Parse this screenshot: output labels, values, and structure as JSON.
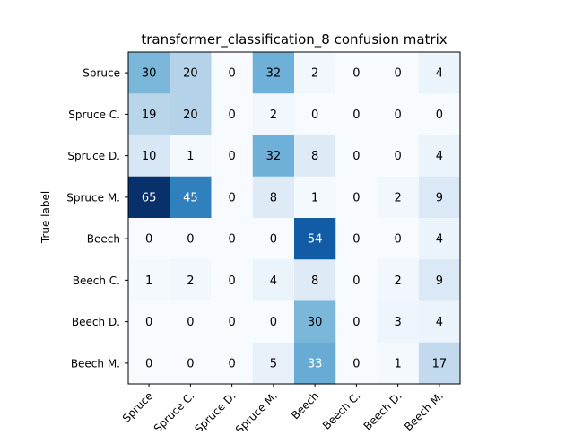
{
  "chart_data": {
    "type": "heatmap",
    "title": "transformer_classification_8 confusion matrix",
    "ylabel": "True label",
    "xlabel": "",
    "row_labels": [
      "Spruce",
      "Spruce C.",
      "Spruce D.",
      "Spruce M.",
      "Beech",
      "Beech C.",
      "Beech D.",
      "Beech M."
    ],
    "col_labels": [
      "Spruce",
      "Spruce C.",
      "Spruce D.",
      "Spruce M.",
      "Beech",
      "Beech C.",
      "Beech D.",
      "Beech M."
    ],
    "values": [
      [
        30,
        20,
        0,
        32,
        2,
        0,
        0,
        4
      ],
      [
        19,
        20,
        0,
        2,
        0,
        0,
        0,
        0
      ],
      [
        10,
        1,
        0,
        32,
        8,
        0,
        0,
        4
      ],
      [
        65,
        45,
        0,
        8,
        1,
        0,
        2,
        9
      ],
      [
        0,
        0,
        0,
        0,
        54,
        0,
        0,
        4
      ],
      [
        1,
        2,
        0,
        4,
        8,
        0,
        2,
        9
      ],
      [
        0,
        0,
        0,
        0,
        30,
        0,
        3,
        4
      ],
      [
        0,
        0,
        0,
        5,
        33,
        0,
        1,
        17
      ]
    ],
    "colormap": "Blues",
    "color_range": [
      0,
      65
    ],
    "grid": false
  }
}
